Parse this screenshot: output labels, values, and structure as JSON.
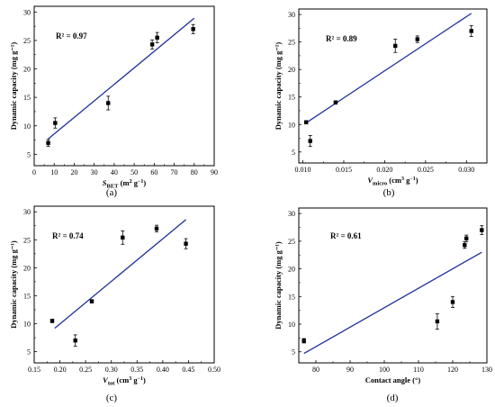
{
  "chart_data": [
    {
      "panel": "(a)",
      "type": "scatter",
      "xlabel_main": "S",
      "xlabel_sub": "BET",
      "xlabel_unit": "(m",
      "xlabel_unit_sup": "2",
      "xlabel_unit_mid": " g",
      "xlabel_unit_sup2": "−1",
      "xlabel_unit_end": ")",
      "ylabel": "Dynamic capacity (mg g⁻¹)",
      "r2": "R² = 0.97",
      "xlim": [
        0,
        90
      ],
      "ylim": [
        3,
        31
      ],
      "xticks": [
        0,
        10,
        20,
        30,
        40,
        50,
        60,
        70,
        80,
        90
      ],
      "xtick_labels": [
        "0",
        "10",
        "20",
        "30",
        "40",
        "50",
        "60",
        "70",
        "80",
        "90"
      ],
      "yticks": [
        5,
        10,
        15,
        20,
        25,
        30
      ],
      "ytick_labels": [
        "5",
        "10",
        "15",
        "20",
        "25",
        "30"
      ],
      "points": [
        {
          "x": 7.0,
          "y": 7.0,
          "err": 0.6
        },
        {
          "x": 10.5,
          "y": 10.5,
          "err": 0.9
        },
        {
          "x": 37.0,
          "y": 14.0,
          "err": 1.2
        },
        {
          "x": 59.0,
          "y": 24.3,
          "err": 0.8
        },
        {
          "x": 61.5,
          "y": 25.5,
          "err": 0.9
        },
        {
          "x": 79.5,
          "y": 27.0,
          "err": 0.8
        }
      ],
      "fit": [
        [
          7.0,
          7.7
        ],
        [
          80.0,
          28.9
        ]
      ]
    },
    {
      "panel": "(b)",
      "type": "scatter",
      "xlabel_main": "V",
      "xlabel_sub": "micro",
      "xlabel_unit": "(cm",
      "xlabel_unit_sup": "3",
      "xlabel_unit_mid": " g",
      "xlabel_unit_sup2": "−1",
      "xlabel_unit_end": ")",
      "ylabel": "Dynamic capacity (mg g⁻¹)",
      "r2": "R² = 0.89",
      "xlim": [
        0.0095,
        0.0325
      ],
      "ylim": [
        3,
        31
      ],
      "xticks": [
        0.01,
        0.015,
        0.02,
        0.025,
        0.03
      ],
      "xtick_labels": [
        "0.010",
        "0.015",
        "0.020",
        "0.025",
        "0.030"
      ],
      "yticks": [
        5,
        10,
        15,
        20,
        25,
        30
      ],
      "ytick_labels": [
        "5",
        "10",
        "15",
        "20",
        "25",
        "30"
      ],
      "points": [
        {
          "x": 0.0104,
          "y": 10.4,
          "err": 0.3
        },
        {
          "x": 0.0109,
          "y": 7.0,
          "err": 1.0
        },
        {
          "x": 0.014,
          "y": 14.0,
          "err": 0.3
        },
        {
          "x": 0.0213,
          "y": 24.3,
          "err": 1.2
        },
        {
          "x": 0.024,
          "y": 25.5,
          "err": 0.6
        },
        {
          "x": 0.0306,
          "y": 27.0,
          "err": 1.0
        }
      ],
      "fit": [
        [
          0.0104,
          10.3
        ],
        [
          0.0306,
          30.2
        ]
      ]
    },
    {
      "panel": "(c)",
      "type": "scatter",
      "xlabel_main": "V",
      "xlabel_sub": "tot",
      "xlabel_unit": "(cm",
      "xlabel_unit_sup": "3",
      "xlabel_unit_mid": " g",
      "xlabel_unit_sup2": "−1",
      "xlabel_unit_end": ")",
      "ylabel": "Dynamic capacity (mg g⁻¹)",
      "r2": "R² = 0.74",
      "xlim": [
        0.15,
        0.5
      ],
      "ylim": [
        3,
        31
      ],
      "xticks": [
        0.15,
        0.2,
        0.25,
        0.3,
        0.35,
        0.4,
        0.45,
        0.5
      ],
      "xtick_labels": [
        "0.15",
        "0.20",
        "0.25",
        "0.30",
        "0.35",
        "0.40",
        "0.45",
        "0.50"
      ],
      "yticks": [
        5,
        10,
        15,
        20,
        25,
        30
      ],
      "ytick_labels": [
        "5",
        "10",
        "15",
        "20",
        "25",
        "30"
      ],
      "points": [
        {
          "x": 0.185,
          "y": 10.5,
          "err": 0.3
        },
        {
          "x": 0.23,
          "y": 7.0,
          "err": 1.0
        },
        {
          "x": 0.262,
          "y": 14.0,
          "err": 0.3
        },
        {
          "x": 0.322,
          "y": 25.4,
          "err": 1.2
        },
        {
          "x": 0.388,
          "y": 27.0,
          "err": 0.6
        },
        {
          "x": 0.445,
          "y": 24.3,
          "err": 0.9
        }
      ],
      "fit": [
        [
          0.19,
          9.2
        ],
        [
          0.445,
          28.6
        ]
      ]
    },
    {
      "panel": "(d)",
      "type": "scatter",
      "xlabel_main": "Contact angle (°)",
      "xlabel_sub": "",
      "xlabel_unit": "",
      "xlabel_unit_sup": "",
      "xlabel_unit_mid": "",
      "xlabel_unit_sup2": "",
      "xlabel_unit_end": "",
      "ylabel": "Dynamic capacity (mg g⁻¹)",
      "r2": "R² = 0.61",
      "xlim": [
        75,
        130
      ],
      "ylim": [
        3,
        31
      ],
      "xticks": [
        80,
        90,
        100,
        110,
        120,
        130
      ],
      "xtick_labels": [
        "80",
        "90",
        "100",
        "110",
        "120",
        "130"
      ],
      "yticks": [
        5,
        10,
        15,
        20,
        25,
        30
      ],
      "ytick_labels": [
        "5",
        "10",
        "15",
        "20",
        "25",
        "30"
      ],
      "points": [
        {
          "x": 76.5,
          "y": 7.0,
          "err": 0.4
        },
        {
          "x": 115.5,
          "y": 10.5,
          "err": 1.4
        },
        {
          "x": 120.0,
          "y": 14.0,
          "err": 1.0
        },
        {
          "x": 123.5,
          "y": 24.3,
          "err": 0.6
        },
        {
          "x": 124.0,
          "y": 25.5,
          "err": 0.6
        },
        {
          "x": 128.5,
          "y": 27.0,
          "err": 0.8
        }
      ],
      "fit": [
        [
          76.5,
          4.7
        ],
        [
          128.5,
          23.0
        ]
      ]
    }
  ]
}
